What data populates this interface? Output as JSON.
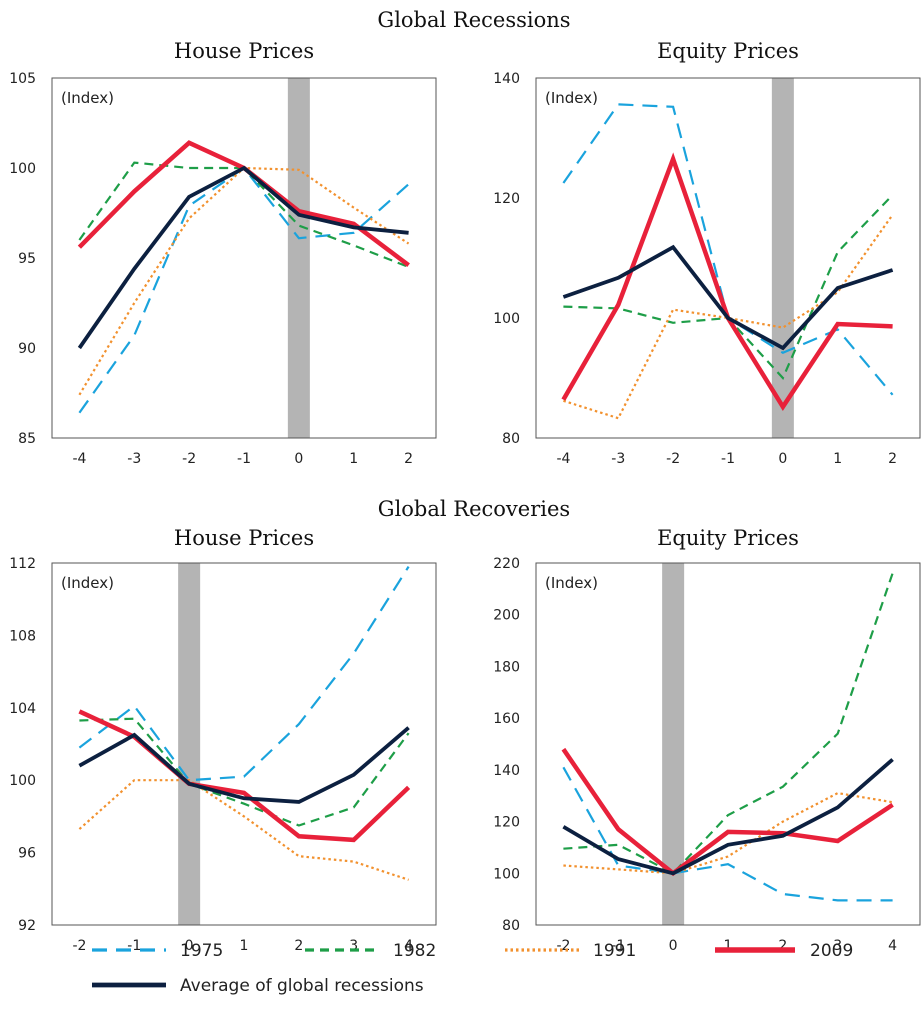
{
  "sections": [
    {
      "title": "Global Recessions"
    },
    {
      "title": "Global Recoveries"
    }
  ],
  "chart_data": [
    {
      "type": "line",
      "title": "House Prices",
      "unit_label": "(Index)",
      "x": [
        -4,
        -3,
        -2,
        -1,
        0,
        1,
        2
      ],
      "ylim": [
        85,
        105
      ],
      "yticks": [
        85,
        90,
        95,
        100,
        105
      ],
      "shade_x": 0,
      "series": [
        {
          "name": "1975",
          "values": [
            86.4,
            90.7,
            97.9,
            100.0,
            96.1,
            96.4,
            99.1
          ]
        },
        {
          "name": "1982",
          "values": [
            96.0,
            100.3,
            100.0,
            100.0,
            96.8,
            95.7,
            94.5
          ]
        },
        {
          "name": "1991",
          "values": [
            87.4,
            92.5,
            97.2,
            100.0,
            99.9,
            97.8,
            95.8
          ]
        },
        {
          "name": "2009",
          "values": [
            95.6,
            98.7,
            101.4,
            100.0,
            97.6,
            96.9,
            94.6
          ]
        },
        {
          "name": "Average of global recessions",
          "values": [
            90.0,
            94.4,
            98.4,
            100.0,
            97.4,
            96.7,
            96.4
          ]
        }
      ]
    },
    {
      "type": "line",
      "title": "Equity Prices",
      "unit_label": "(Index)",
      "x": [
        -4,
        -3,
        -2,
        -1,
        0,
        1,
        2
      ],
      "ylim": [
        80,
        140
      ],
      "yticks": [
        80,
        100,
        120,
        140
      ],
      "shade_x": 0,
      "series": [
        {
          "name": "1975",
          "values": [
            122.5,
            135.6,
            135.2,
            100.0,
            94.2,
            98.1,
            87.2
          ]
        },
        {
          "name": "1982",
          "values": [
            101.9,
            101.6,
            99.2,
            100.0,
            90.0,
            111.0,
            120.5
          ]
        },
        {
          "name": "1991",
          "values": [
            86.2,
            83.3,
            101.4,
            100.0,
            98.4,
            104.3,
            117.2
          ]
        },
        {
          "name": "2009",
          "values": [
            86.4,
            102.2,
            126.5,
            100.0,
            85.2,
            99.0,
            98.6
          ]
        },
        {
          "name": "Average of global recessions",
          "values": [
            103.5,
            106.7,
            111.8,
            100.0,
            95.0,
            105.0,
            108.0
          ]
        }
      ]
    },
    {
      "type": "line",
      "title": "House Prices",
      "unit_label": "(Index)",
      "x": [
        -2,
        -1,
        0,
        1,
        2,
        3,
        4
      ],
      "ylim": [
        92,
        112
      ],
      "yticks": [
        92,
        96,
        100,
        104,
        108,
        112
      ],
      "shade_x": 0,
      "series": [
        {
          "name": "1975",
          "values": [
            101.8,
            104.1,
            100.0,
            100.2,
            103.1,
            107.0,
            111.8
          ]
        },
        {
          "name": "1982",
          "values": [
            103.3,
            103.4,
            99.8,
            98.7,
            97.5,
            98.5,
            102.6
          ]
        },
        {
          "name": "1991",
          "values": [
            97.3,
            100.0,
            100.0,
            98.0,
            95.8,
            95.5,
            94.5
          ]
        },
        {
          "name": "2009",
          "values": [
            103.8,
            102.4,
            99.8,
            99.3,
            96.9,
            96.7,
            99.6
          ]
        },
        {
          "name": "Average of global recessions",
          "values": [
            100.8,
            102.5,
            99.8,
            99.0,
            98.8,
            100.3,
            102.9
          ]
        }
      ]
    },
    {
      "type": "line",
      "title": "Equity Prices",
      "unit_label": "(Index)",
      "x": [
        -2,
        -1,
        0,
        1,
        2,
        3,
        4
      ],
      "ylim": [
        80,
        220
      ],
      "yticks": [
        80,
        100,
        120,
        140,
        160,
        180,
        200,
        220
      ],
      "shade_x": 0,
      "series": [
        {
          "name": "1975",
          "values": [
            141.0,
            103.0,
            100.0,
            103.5,
            92.0,
            89.5,
            89.5
          ]
        },
        {
          "name": "1982",
          "values": [
            109.5,
            111.0,
            100.0,
            122.5,
            133.5,
            154.0,
            216.0
          ]
        },
        {
          "name": "1991",
          "values": [
            103.0,
            101.5,
            100.0,
            106.5,
            120.0,
            131.0,
            127.5
          ]
        },
        {
          "name": "2009",
          "values": [
            148.0,
            117.0,
            100.0,
            116.0,
            115.5,
            112.5,
            126.5
          ]
        },
        {
          "name": "Average of global recessions",
          "values": [
            118.0,
            105.5,
            100.0,
            111.0,
            114.5,
            125.5,
            144.0
          ]
        }
      ]
    }
  ],
  "styles": [
    {
      "color": "#1aa3dd",
      "dash": "15 9",
      "width": 2.2
    },
    {
      "color": "#1e9e48",
      "dash": "9 6",
      "width": 2.2
    },
    {
      "color": "#f2912e",
      "dash": "2.5 3",
      "width": 2.2
    },
    {
      "color": "#e8213a",
      "dash": "",
      "width": 4.5
    },
    {
      "color": "#0c2040",
      "dash": "",
      "width": 3.8
    }
  ],
  "shade_color": "#b4b4b4",
  "legend": {
    "position": "bottom",
    "items": [
      "1975",
      "1982",
      "1991",
      "2009",
      "Average of global recessions"
    ]
  }
}
